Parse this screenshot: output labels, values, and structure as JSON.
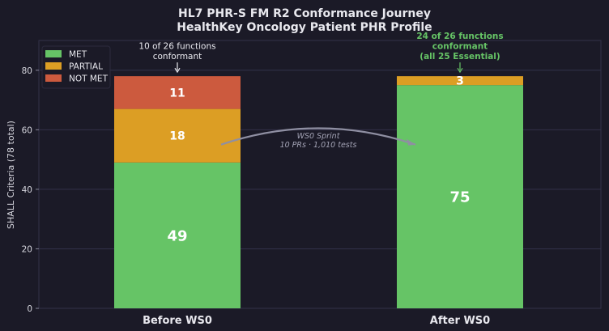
{
  "colors": {
    "background": "#1b1a27",
    "met": "#66c466",
    "partial": "#dc9e24",
    "not_met": "#cc5a3e",
    "grid": "#33324a",
    "text": "#e8e8ee",
    "muted": "#a4a4b6",
    "highlight": "#66c466"
  },
  "chart_data": {
    "type": "bar",
    "stacked": true,
    "title": "HL7 PHR-S FM R2 Conformance Journey",
    "subtitle": "HealthKey Oncology Patient PHR Profile",
    "xlabel": "",
    "ylabel": "SHALL Criteria (78 total)",
    "ylim": [
      0,
      90
    ],
    "yticks": [
      0,
      20,
      40,
      60,
      80
    ],
    "grid": true,
    "legend_position": "top-left",
    "categories": [
      "Before WS0",
      "After WS0"
    ],
    "series": [
      {
        "name": "MET",
        "color": "#66c466",
        "values": [
          49,
          75
        ]
      },
      {
        "name": "PARTIAL",
        "color": "#dc9e24",
        "values": [
          18,
          3
        ]
      },
      {
        "name": "NOT MET",
        "color": "#cc5a3e",
        "values": [
          11,
          0
        ]
      }
    ],
    "annotations": [
      {
        "category": 0,
        "lines": [
          "10 of 26 functions",
          "conformant"
        ],
        "color": "#e8e8ee",
        "bold": false
      },
      {
        "category": 1,
        "lines": [
          "24 of 26 functions",
          "conformant",
          "(all 25 Essential)"
        ],
        "color": "#66c466",
        "bold": true
      }
    ],
    "transition": {
      "lines": [
        "WS0 Sprint",
        "10 PRs · 1,010 tests"
      ]
    }
  }
}
